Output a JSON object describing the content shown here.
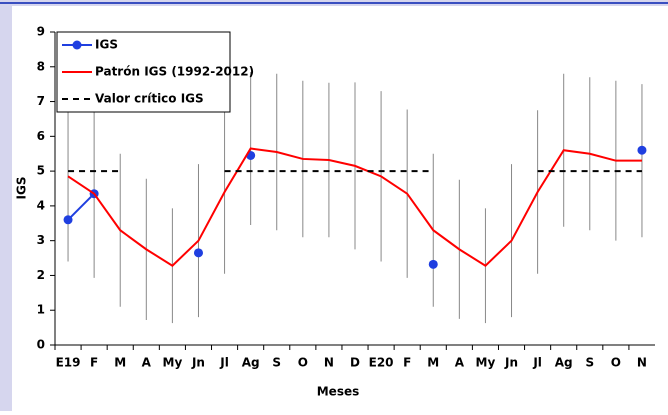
{
  "chart_data": {
    "type": "line",
    "x_label": "Meses",
    "y_label": "IGS",
    "categories": [
      "E19",
      "F",
      "M",
      "A",
      "My",
      "Jn",
      "Jl",
      "Ag",
      "S",
      "O",
      "N",
      "D",
      "E20",
      "F",
      "M",
      "A",
      "My",
      "Jn",
      "Jl",
      "Ag",
      "S",
      "O",
      "N"
    ],
    "ylim": [
      0,
      9
    ],
    "yticks": [
      0,
      1,
      2,
      3,
      4,
      5,
      6,
      7,
      8,
      9
    ],
    "series": [
      {
        "name": "IGS",
        "color": "#1f3fe0",
        "marker": true,
        "values": [
          3.6,
          4.35,
          null,
          null,
          null,
          2.65,
          null,
          5.45,
          null,
          null,
          null,
          null,
          null,
          null,
          2.32,
          null,
          null,
          null,
          null,
          null,
          null,
          null,
          5.6
        ]
      },
      {
        "name": "Patrón IGS (1992-2012)",
        "color": "#ff0000",
        "values": [
          4.85,
          4.35,
          3.3,
          2.75,
          2.28,
          3.0,
          4.4,
          5.65,
          5.55,
          5.35,
          5.32,
          5.15,
          4.85,
          4.35,
          3.3,
          2.75,
          2.28,
          3.0,
          4.4,
          5.6,
          5.5,
          5.3,
          5.3
        ],
        "errors": [
          2.45,
          2.42,
          2.2,
          2.03,
          1.65,
          2.2,
          2.35,
          2.2,
          2.25,
          2.25,
          2.22,
          2.4,
          2.45,
          2.42,
          2.2,
          2.0,
          1.65,
          2.2,
          2.35,
          2.2,
          2.2,
          2.3,
          2.2
        ]
      },
      {
        "name": "Valor crítico IGS",
        "color": "#000000",
        "line_style": "dashed",
        "values": [
          5,
          5,
          5,
          null,
          null,
          null,
          5,
          5,
          5,
          5,
          5,
          5,
          5,
          5,
          5,
          null,
          null,
          null,
          5,
          5,
          5,
          5,
          5
        ]
      }
    ]
  }
}
